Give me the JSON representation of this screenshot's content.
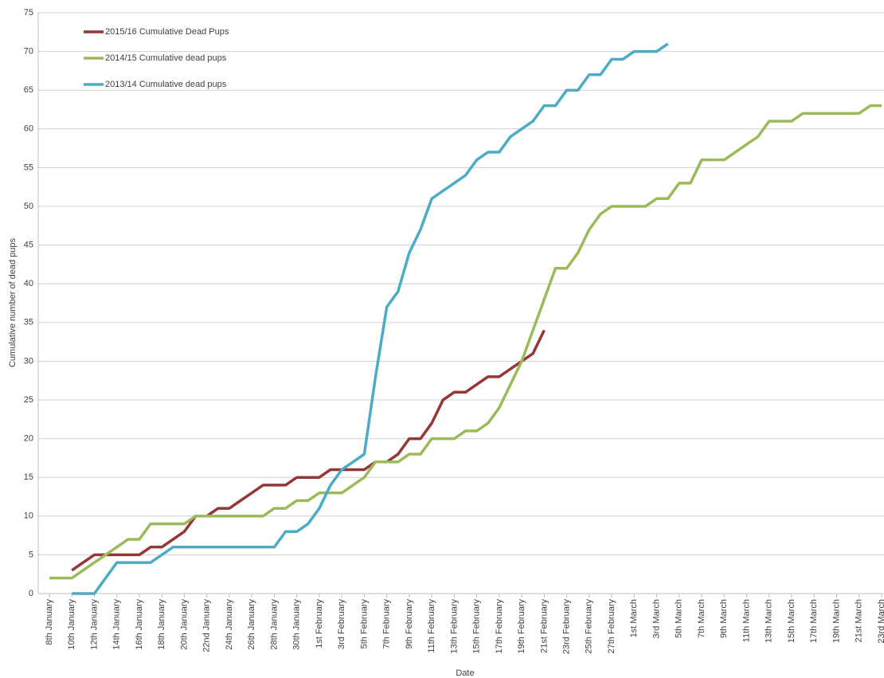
{
  "chart_data": {
    "type": "line",
    "y_label": "Cumulative number of dead pups",
    "x_label": "Date",
    "categories": [
      "8th January",
      null,
      "10th January",
      null,
      "12th January",
      null,
      "14th January",
      null,
      "16th January",
      null,
      "18th January",
      null,
      "20th January",
      null,
      "22nd January",
      null,
      "24th January",
      null,
      "26th January",
      null,
      "28th January",
      null,
      "30th January",
      null,
      "1st February",
      null,
      "3rd February",
      null,
      "5th February",
      null,
      "7th February",
      null,
      "9th February",
      null,
      "11th February",
      null,
      "13th February",
      null,
      "15th February",
      null,
      "17th February",
      null,
      "19th February",
      null,
      "21st February",
      null,
      "23rd February",
      null,
      "25th February",
      null,
      "27th February",
      null,
      "1st March",
      null,
      "3rd March",
      null,
      "5th March",
      null,
      "7th March",
      null,
      "9th March",
      null,
      "11th March",
      null,
      "13th March",
      null,
      "15th March",
      null,
      "17th March",
      null,
      "19th March",
      null,
      "21st March",
      null,
      "23rd March"
    ],
    "series": [
      {
        "name": "2015/16 Cumulative Dead Pups",
        "color": "#953735",
        "values": [
          null,
          null,
          3,
          4,
          5,
          5,
          5,
          5,
          5,
          6,
          6,
          7,
          8,
          10,
          10,
          11,
          11,
          12,
          13,
          14,
          14,
          14,
          15,
          15,
          15,
          16,
          16,
          16,
          16,
          17,
          17,
          18,
          20,
          20,
          22,
          25,
          26,
          26,
          27,
          28,
          28,
          29,
          30,
          31,
          34,
          null,
          null,
          null,
          null,
          null,
          null,
          null,
          null,
          null,
          null,
          null,
          null,
          null,
          null,
          null,
          null,
          null,
          null,
          null,
          null,
          null,
          null,
          null,
          null,
          null,
          null,
          null,
          null,
          null,
          null
        ]
      },
      {
        "name": "2014/15 Cumulative dead pups",
        "color": "#9bbb59",
        "values": [
          2,
          2,
          2,
          3,
          4,
          5,
          6,
          7,
          7,
          9,
          9,
          9,
          9,
          10,
          10,
          10,
          10,
          10,
          10,
          10,
          11,
          11,
          12,
          12,
          13,
          13,
          13,
          14,
          15,
          17,
          17,
          17,
          18,
          18,
          20,
          20,
          20,
          21,
          21,
          22,
          24,
          27,
          30,
          34,
          38,
          42,
          42,
          44,
          47,
          49,
          50,
          50,
          50,
          50,
          51,
          51,
          53,
          53,
          56,
          56,
          56,
          57,
          58,
          59,
          61,
          61,
          61,
          62,
          62,
          62,
          62,
          62,
          62,
          63,
          63
        ]
      },
      {
        "name": "2013/14 Cumulative dead pups",
        "color": "#4bacc6",
        "values": [
          null,
          null,
          0,
          0,
          0,
          2,
          4,
          4,
          4,
          4,
          5,
          6,
          6,
          6,
          6,
          6,
          6,
          6,
          6,
          6,
          6,
          8,
          8,
          9,
          11,
          14,
          16,
          17,
          18,
          28,
          37,
          39,
          44,
          47,
          51,
          52,
          53,
          54,
          56,
          57,
          57,
          59,
          60,
          61,
          63,
          63,
          65,
          65,
          67,
          67,
          69,
          69,
          70,
          70,
          70,
          71,
          null,
          null,
          null,
          null,
          null,
          null,
          null,
          null,
          null,
          null,
          null,
          null,
          null,
          null,
          null,
          null,
          null,
          null,
          null
        ]
      }
    ],
    "ylim": [
      0,
      75
    ],
    "yticks": [
      0,
      5,
      10,
      15,
      20,
      25,
      30,
      35,
      40,
      45,
      50,
      55,
      60,
      65,
      70,
      75
    ],
    "grid": true,
    "legend": "upper left"
  }
}
